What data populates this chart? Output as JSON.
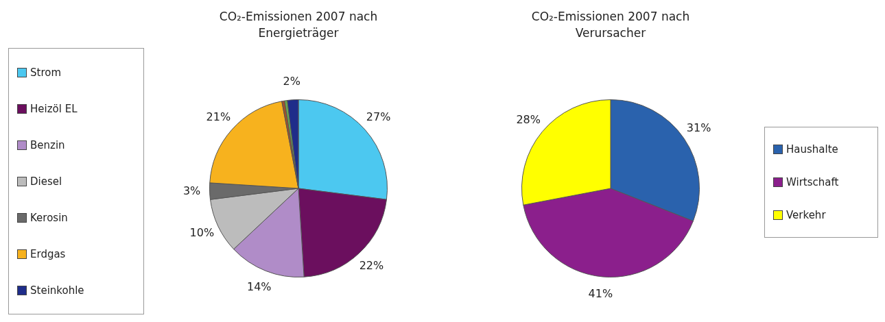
{
  "chart_data": [
    {
      "type": "pie",
      "title": "CO₂-Emissionen 2007 nach Energieträger",
      "legend": "left",
      "categories": [
        "Strom",
        "Heizöl EL",
        "Benzin",
        "Diesel",
        "Kerosin",
        "Erdgas",
        null,
        null,
        "Steinkohle"
      ],
      "values": [
        27,
        22,
        14,
        10,
        3,
        21,
        0.5,
        0.5,
        2
      ],
      "value_labels": [
        "27%",
        "22%",
        "14%",
        "10%",
        "3%",
        "21%",
        null,
        null,
        "2%"
      ],
      "colors": [
        "#4cc8f0",
        "#6b0f5e",
        "#b08cc8",
        "#bcbcbc",
        "#6a6a6a",
        "#f7b21e",
        "#a0522d",
        "#6aa84f",
        "#1f2d8a"
      ]
    },
    {
      "type": "pie",
      "title": "CO₂-Emissionen 2007 nach Verursacher",
      "legend": "right",
      "categories": [
        "Haushalte",
        "Wirtschaft",
        "Verkehr"
      ],
      "values": [
        31,
        41,
        28
      ],
      "value_labels": [
        "31%",
        "41%",
        "28%"
      ],
      "colors": [
        "#2a62ad",
        "#8b1f8c",
        "#ffff00"
      ]
    }
  ]
}
